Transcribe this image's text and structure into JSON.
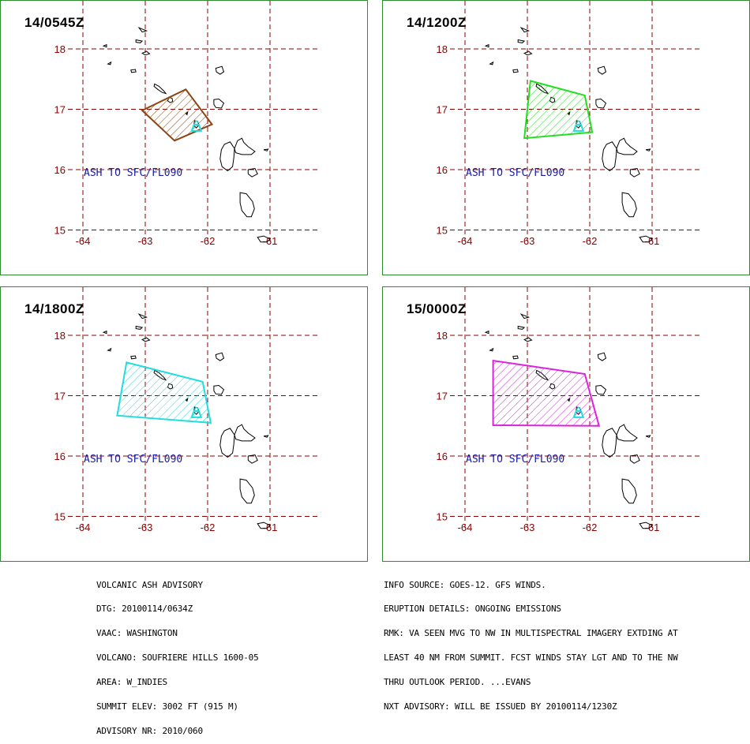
{
  "panels": [
    {
      "time": "14/0545Z",
      "polygon_color": "#8b4513",
      "label": "ASH TO SFC/FL090",
      "polygon": [
        [
          -63.05,
          16.98
        ],
        [
          -62.35,
          17.33
        ],
        [
          -61.93,
          16.75
        ],
        [
          -62.53,
          16.48
        ]
      ]
    },
    {
      "time": "14/1200Z",
      "polygon_color": "#22dd22",
      "label": "ASH TO SFC/FL090",
      "polygon": [
        [
          -62.95,
          17.47
        ],
        [
          -62.08,
          17.23
        ],
        [
          -61.96,
          16.62
        ],
        [
          -63.05,
          16.52
        ]
      ]
    },
    {
      "time": "14/1800Z",
      "polygon_color": "#22dddd",
      "label": "ASH TO SFC/FL090",
      "polygon": [
        [
          -63.3,
          17.55
        ],
        [
          -62.08,
          17.23
        ],
        [
          -61.95,
          16.55
        ],
        [
          -63.45,
          16.67
        ]
      ]
    },
    {
      "time": "15/0000Z",
      "polygon_color": "#dd22dd",
      "label": "ASH TO SFC/FL090",
      "polygon": [
        [
          -63.55,
          17.58
        ],
        [
          -62.08,
          17.36
        ],
        [
          -61.85,
          16.5
        ],
        [
          -63.55,
          16.51
        ]
      ]
    }
  ],
  "axes": {
    "lon_ticks": [
      "-64",
      "-63",
      "-62",
      "-61"
    ],
    "lat_ticks": [
      "18",
      "17",
      "16",
      "15"
    ]
  },
  "volcano": {
    "lon": -62.18,
    "lat": 16.72,
    "color": "#22dddd"
  },
  "advisory": {
    "left_lines": [
      "VOLCANIC ASH ADVISORY",
      "DTG: 20100114/0634Z",
      "VAAC: WASHINGTON",
      "VOLCANO: SOUFRIERE HILLS 1600-05",
      "AREA: W_INDIES",
      "SUMMIT ELEV: 3002 FT (915 M)",
      "ADVISORY NR: 2010/060"
    ],
    "right_lines": [
      "INFO SOURCE: GOES-12. GFS WINDS.",
      "ERUPTION DETAILS: ONGOING EMISSIONS",
      "RMK: VA SEEN MVG TO NW IN MULTISPECTRAL IMAGERY EXTDING AT",
      "LEAST 40 NM FROM SUMMIT. FCST WINDS STAY LGT AND TO THE NW",
      "THRU OUTLOOK PERIOD. ...EVANS",
      "NXT ADVISORY: WILL BE ISSUED BY 20100114/1230Z"
    ]
  },
  "colors": {
    "grid": "#8b0000",
    "frame": "#2e8b2e",
    "ash_label": "#1a1aa8"
  }
}
